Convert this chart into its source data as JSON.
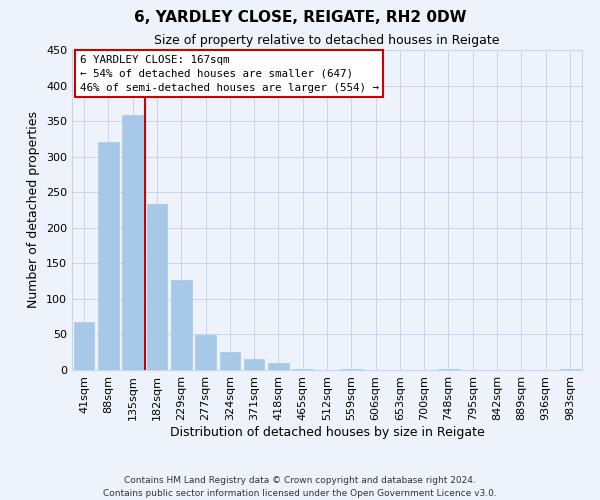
{
  "title": "6, YARDLEY CLOSE, REIGATE, RH2 0DW",
  "subtitle": "Size of property relative to detached houses in Reigate",
  "xlabel": "Distribution of detached houses by size in Reigate",
  "ylabel": "Number of detached properties",
  "bar_labels": [
    "41sqm",
    "88sqm",
    "135sqm",
    "182sqm",
    "229sqm",
    "277sqm",
    "324sqm",
    "371sqm",
    "418sqm",
    "465sqm",
    "512sqm",
    "559sqm",
    "606sqm",
    "653sqm",
    "700sqm",
    "748sqm",
    "795sqm",
    "842sqm",
    "889sqm",
    "936sqm",
    "983sqm"
  ],
  "bar_values": [
    68,
    320,
    358,
    234,
    127,
    49,
    25,
    15,
    10,
    2,
    0,
    2,
    0,
    0,
    0,
    2,
    0,
    0,
    0,
    0,
    2
  ],
  "bar_color": "#a8c8e8",
  "bar_edge_color": "#a8c8e8",
  "vline_color": "#cc0000",
  "vline_x_index": 3,
  "ylim": [
    0,
    450
  ],
  "yticks": [
    0,
    50,
    100,
    150,
    200,
    250,
    300,
    350,
    400,
    450
  ],
  "annotation_text_line1": "6 YARDLEY CLOSE: 167sqm",
  "annotation_text_line2": "← 54% of detached houses are smaller (647)",
  "annotation_text_line3": "46% of semi-detached houses are larger (554) →",
  "footer_line1": "Contains HM Land Registry data © Crown copyright and database right 2024.",
  "footer_line2": "Contains public sector information licensed under the Open Government Licence v3.0.",
  "background_color": "#eef2fb",
  "plot_bg_color": "#eef2fb",
  "grid_color": "#c8d4e8",
  "title_fontsize": 11,
  "subtitle_fontsize": 9
}
